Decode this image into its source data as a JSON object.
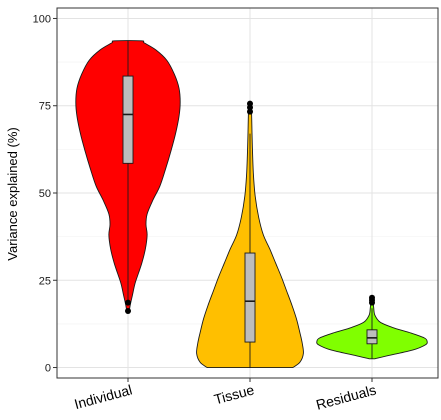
{
  "chart_data": {
    "type": "violin",
    "title": "",
    "xlabel": "",
    "ylabel": "Variance explained (%)",
    "ylim": [
      -3,
      103
    ],
    "yticks": [
      0,
      25,
      50,
      75,
      100
    ],
    "ytick_labels": [
      "0",
      "25",
      "50",
      "75",
      "100"
    ],
    "grid": true,
    "legend": "none",
    "categories": [
      "Individual",
      "Tissue",
      "Residuals"
    ],
    "series": [
      {
        "category": "Individual",
        "color": "#ff0000",
        "min": 16,
        "max": 93.6,
        "box": {
          "whisker_low": 19,
          "q1": 58.5,
          "median": 72.5,
          "q3": 83.5,
          "whisker_high": 93.6
        },
        "outliers": [
          16.2,
          18.6
        ],
        "density": [
          [
            16,
            0.02
          ],
          [
            18,
            0.04
          ],
          [
            21,
            0.08
          ],
          [
            24,
            0.12
          ],
          [
            27,
            0.18
          ],
          [
            30,
            0.24
          ],
          [
            34,
            0.3
          ],
          [
            38,
            0.33
          ],
          [
            41,
            0.31
          ],
          [
            44,
            0.33
          ],
          [
            48,
            0.43
          ],
          [
            52,
            0.55
          ],
          [
            57,
            0.65
          ],
          [
            62,
            0.74
          ],
          [
            67,
            0.82
          ],
          [
            72,
            0.88
          ],
          [
            76,
            0.9
          ],
          [
            80,
            0.88
          ],
          [
            84,
            0.8
          ],
          [
            88,
            0.67
          ],
          [
            91,
            0.48
          ],
          [
            93,
            0.28
          ],
          [
            93.6,
            0.23
          ]
        ]
      },
      {
        "category": "Tissue",
        "color": "#ffbf00",
        "min": 0,
        "max": 76,
        "box": {
          "whisker_low": 0,
          "q1": 7.3,
          "median": 19,
          "q3": 32.8,
          "whisker_high": 67
        },
        "outliers": [
          73.3,
          74.5,
          75.6
        ],
        "density": [
          [
            0,
            0.74
          ],
          [
            1.5,
            0.86
          ],
          [
            4,
            0.92
          ],
          [
            7,
            0.9
          ],
          [
            10,
            0.86
          ],
          [
            14,
            0.8
          ],
          [
            18,
            0.72
          ],
          [
            22,
            0.63
          ],
          [
            26,
            0.54
          ],
          [
            30,
            0.44
          ],
          [
            34,
            0.34
          ],
          [
            38,
            0.23
          ],
          [
            43,
            0.15
          ],
          [
            49,
            0.09
          ],
          [
            55,
            0.06
          ],
          [
            61,
            0.045
          ],
          [
            67,
            0.035
          ],
          [
            71,
            0.03
          ],
          [
            74,
            0.025
          ],
          [
            76,
            0.015
          ]
        ]
      },
      {
        "category": "Residuals",
        "color": "#80ff00",
        "min": 2.5,
        "max": 20,
        "box": {
          "whisker_low": 2.5,
          "q1": 6.8,
          "median": 8.5,
          "q3": 10.8,
          "whisker_high": 17
        },
        "outliers": [
          18.6,
          19.3,
          20
        ],
        "density": [
          [
            2.5,
            0.05
          ],
          [
            3.5,
            0.3
          ],
          [
            5,
            0.7
          ],
          [
            6.5,
            0.92
          ],
          [
            7.5,
            0.95
          ],
          [
            8.5,
            0.9
          ],
          [
            10,
            0.65
          ],
          [
            11.5,
            0.35
          ],
          [
            13,
            0.14
          ],
          [
            15,
            0.05
          ],
          [
            17,
            0.03
          ],
          [
            19,
            0.02
          ],
          [
            20,
            0.01
          ]
        ]
      }
    ]
  }
}
